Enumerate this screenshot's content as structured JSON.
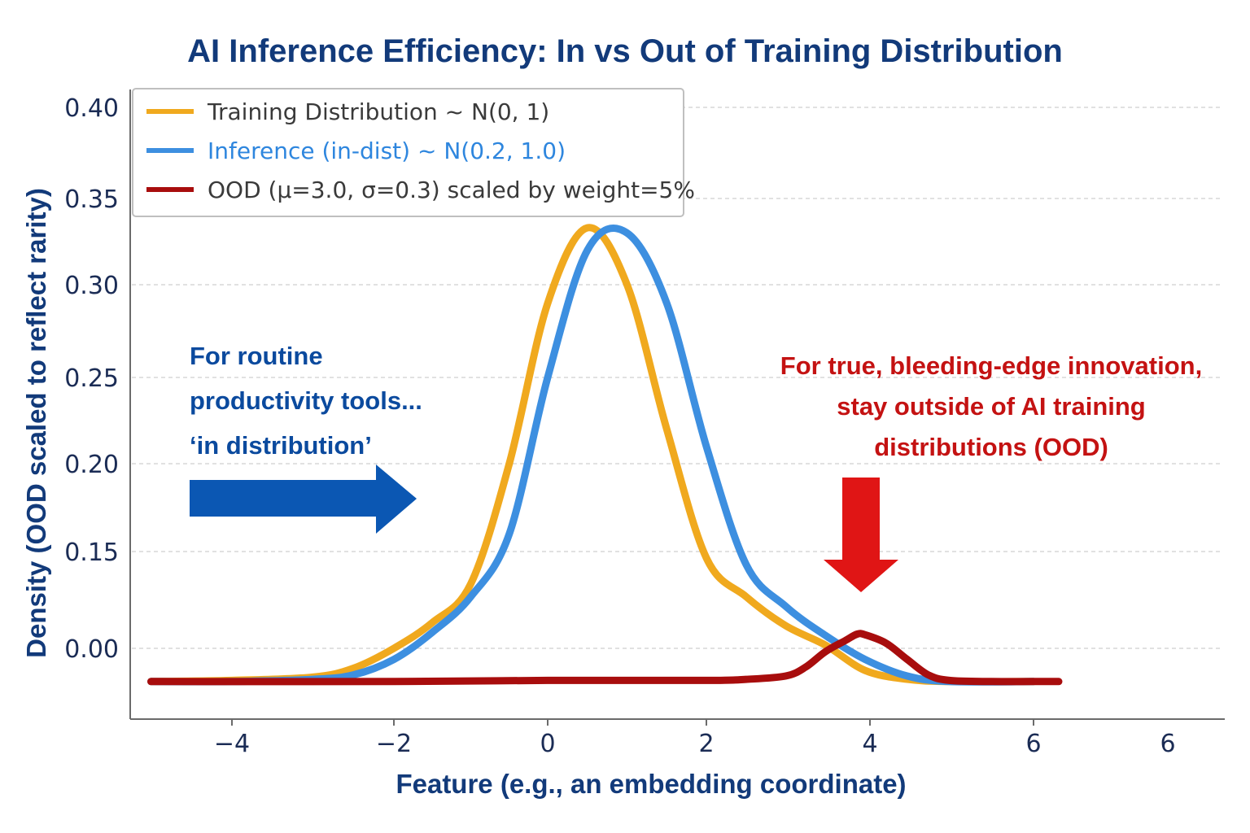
{
  "chart_data": {
    "type": "line",
    "title": "AI Inference Efficiency: In vs Out of Training Distribution",
    "xlabel": "Feature (e.g., an embedding coordinate)",
    "ylabel": "Density (OOD scaled to reflect rarity)",
    "xticks": [
      "−4",
      "−2",
      "0",
      "2",
      "4",
      "6",
      "6"
    ],
    "yticks": [
      "0.40",
      "0.35",
      "0.30",
      "0.25",
      "0.20",
      "0.15",
      "0.00"
    ],
    "grid": "horizontal dashed",
    "legend_position": "top-left",
    "series": [
      {
        "name": "Training Distribution ~ N(0, 1)",
        "color": "#f0a91e",
        "x": [
          -5.0,
          -4.0,
          -3.0,
          -2.5,
          -2.0,
          -1.5,
          -1.0,
          -0.5,
          0.0,
          0.5,
          1.0,
          1.5,
          2.0,
          2.5,
          3.0,
          3.5,
          4.0,
          4.5,
          5.0,
          6.0
        ],
        "y": [
          -0.03,
          -0.029,
          -0.026,
          -0.018,
          0.0,
          0.04,
          0.1,
          0.2,
          0.29,
          0.333,
          0.3,
          0.22,
          0.14,
          0.08,
          0.035,
          0.005,
          -0.02,
          -0.028,
          -0.03,
          -0.03
        ]
      },
      {
        "name": "Inference (in-dist) ~ N(0.2, 1.0)",
        "color": "#3d8fe0",
        "x": [
          -5.0,
          -4.0,
          -3.0,
          -2.5,
          -2.0,
          -1.5,
          -1.0,
          -0.5,
          0.0,
          0.5,
          1.0,
          1.5,
          2.0,
          2.5,
          3.0,
          3.5,
          4.0,
          4.5,
          5.0,
          6.0
        ],
        "y": [
          -0.03,
          -0.03,
          -0.028,
          -0.024,
          -0.01,
          0.025,
          0.08,
          0.16,
          0.25,
          0.32,
          0.33,
          0.29,
          0.21,
          0.13,
          0.065,
          0.02,
          -0.01,
          -0.025,
          -0.03,
          -0.03
        ]
      },
      {
        "name": "OOD (μ=3.0, σ=0.3) scaled by weight=5%",
        "color": "#a80d0d",
        "x": [
          -5.0,
          -2.0,
          0.0,
          2.0,
          2.5,
          3.0,
          3.25,
          3.5,
          3.75,
          3.9,
          4.0,
          4.25,
          4.5,
          4.75,
          5.0,
          5.5,
          6.0,
          6.3
        ],
        "y": [
          -0.03,
          -0.03,
          -0.029,
          -0.029,
          -0.028,
          -0.025,
          -0.017,
          -0.003,
          0.012,
          0.022,
          0.021,
          0.008,
          -0.01,
          -0.024,
          -0.029,
          -0.03,
          -0.03,
          -0.03
        ]
      }
    ],
    "annotations": {
      "left": [
        "For routine",
        "productivity tools...",
        "‘in distribution’"
      ],
      "right": [
        "For true, bleeding-edge innovation,",
        "stay outside of AI training",
        "distributions (OOD)"
      ]
    },
    "colors": {
      "title": "#123a7a",
      "annotation_left": "#0b4a9e",
      "annotation_right": "#c41212",
      "arrow_left": "#0b57b3",
      "arrow_right": "#e01515"
    }
  }
}
